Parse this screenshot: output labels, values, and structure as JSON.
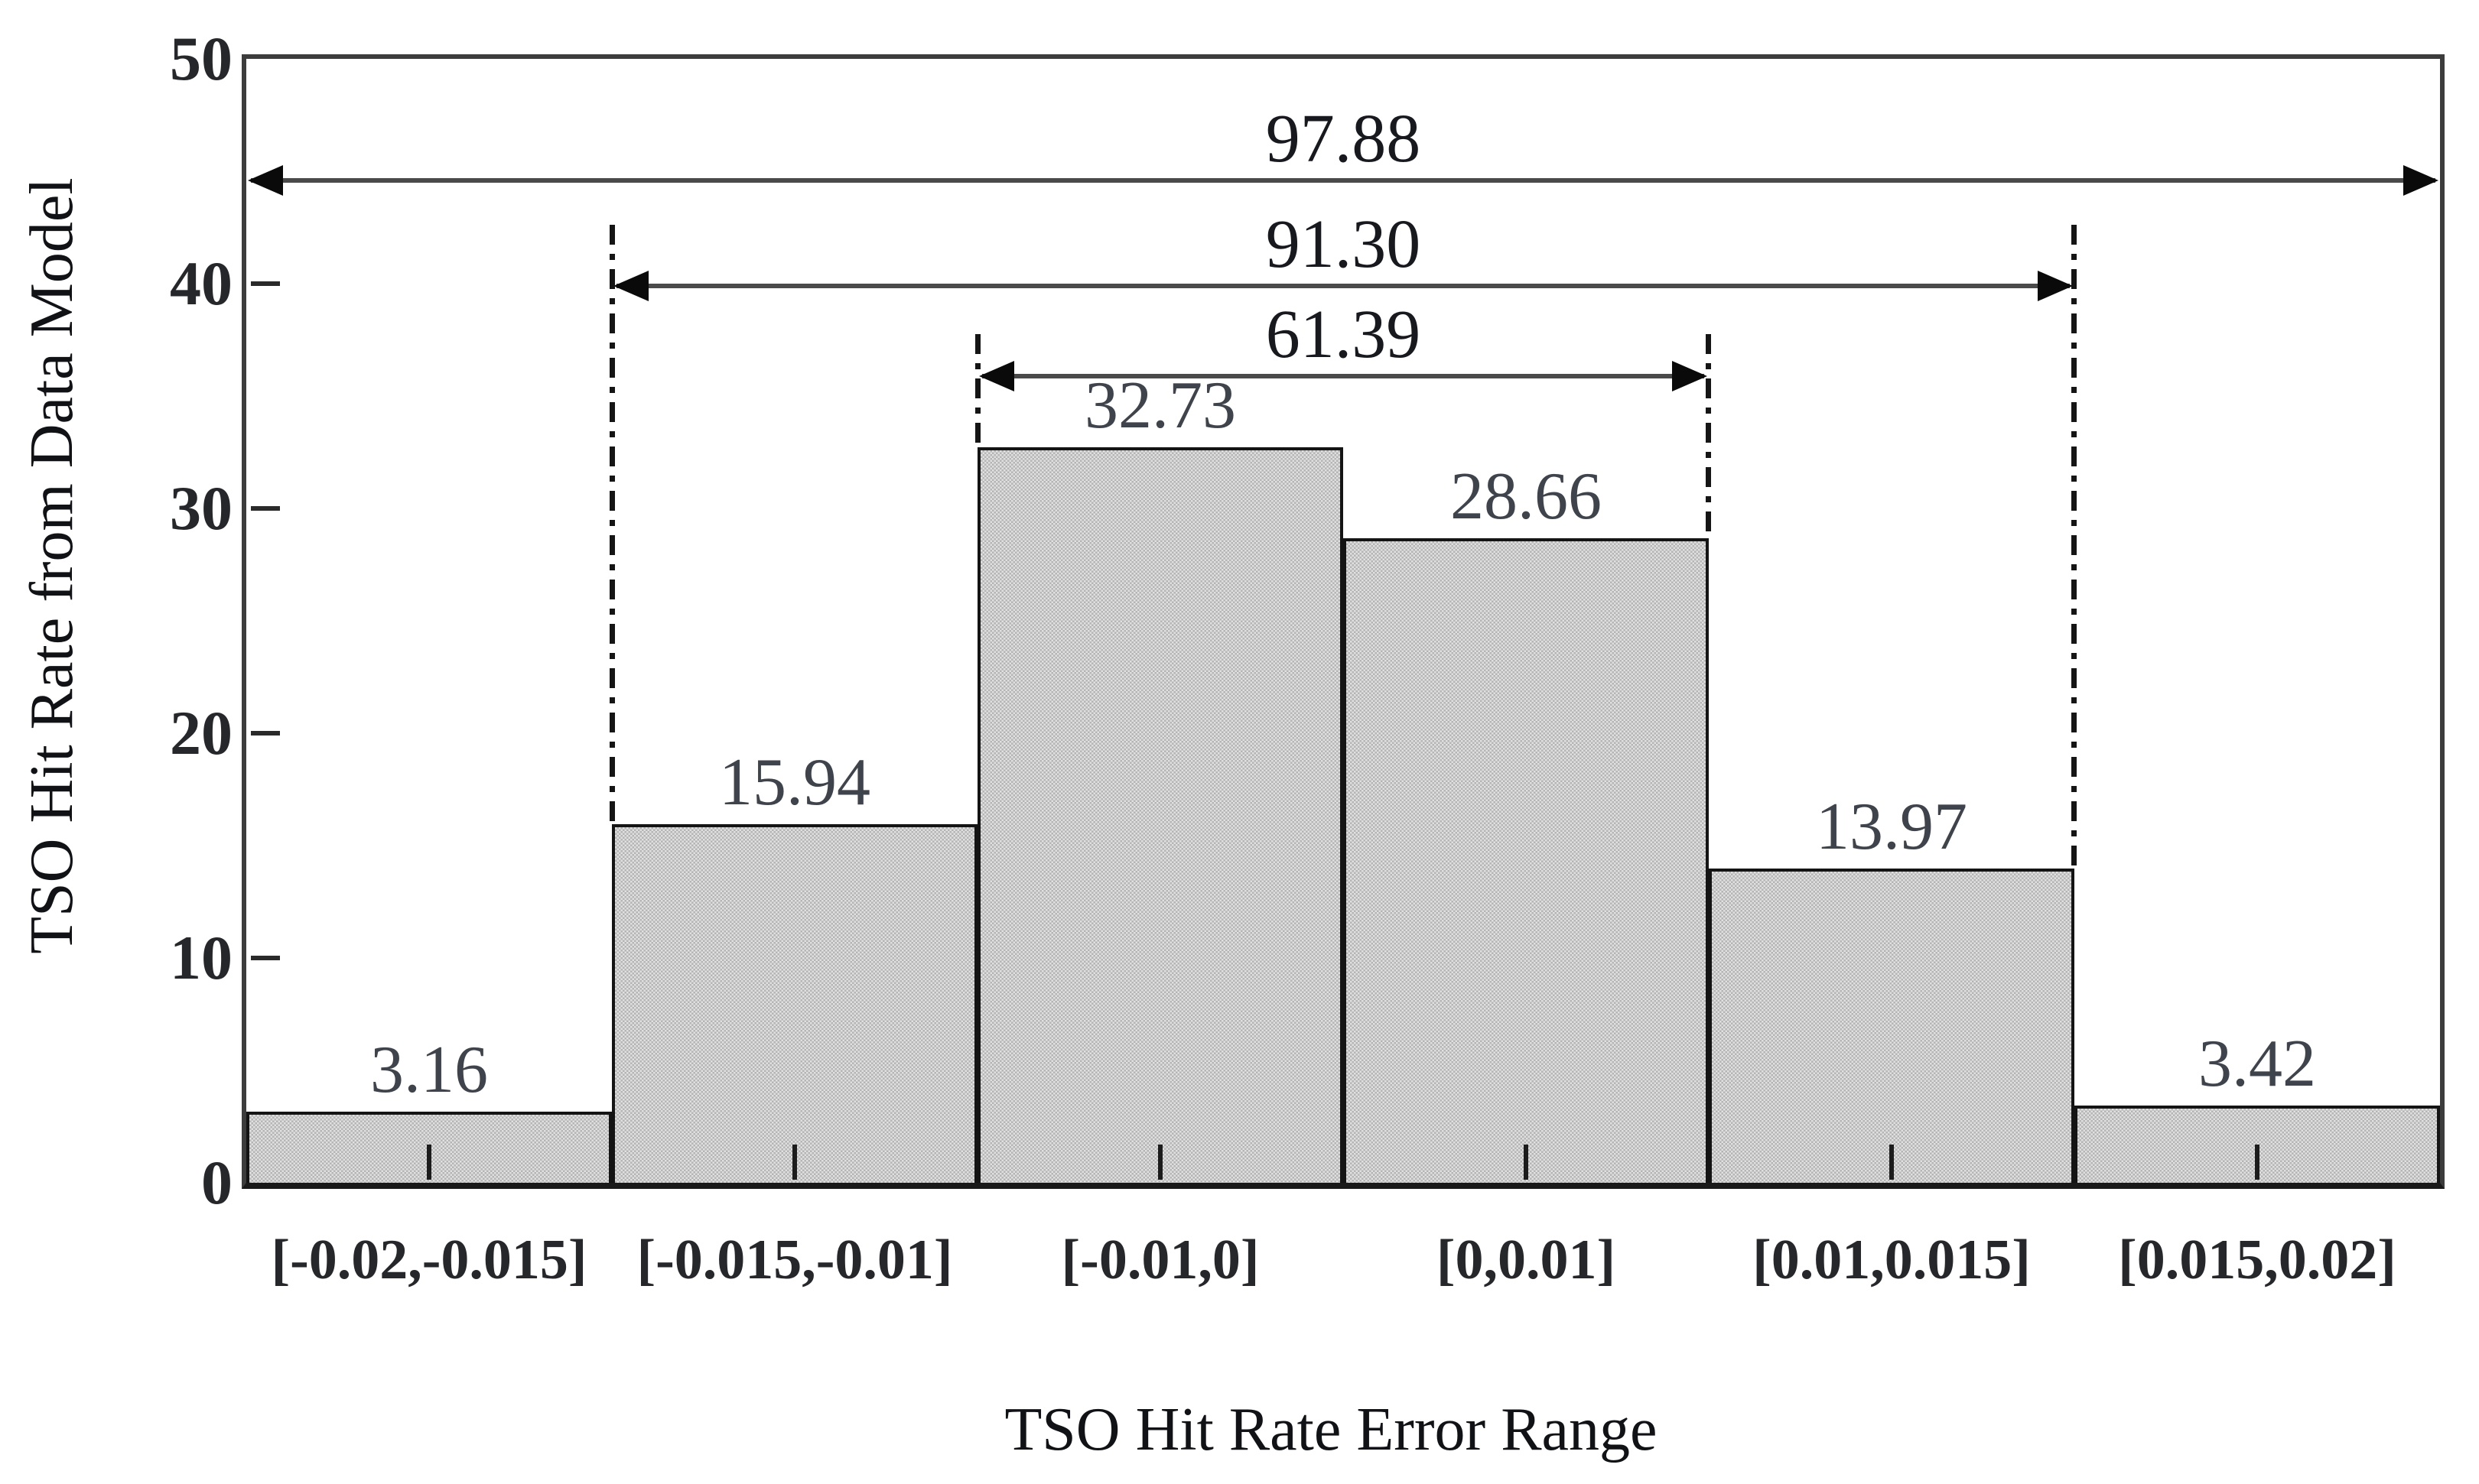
{
  "chart_data": {
    "type": "bar",
    "title": "",
    "xlabel": "TSO Hit Rate Error Range",
    "ylabel": "TSO Hit Rate from Data Model",
    "categories": [
      "[-0.02,-0.015]",
      "[-0.015,-0.01]",
      "[-0.01,0]",
      "[0,0.01]",
      "[0.01,0.015]",
      "[0.015,0.02]"
    ],
    "values": [
      3.16,
      15.94,
      32.73,
      28.66,
      13.97,
      3.42
    ],
    "bar_labels": [
      "3.16",
      "15.94",
      "32.73",
      "28.66",
      "13.97",
      "3.42"
    ],
    "ylim": [
      0,
      50
    ],
    "yticks": [
      0,
      10,
      20,
      30,
      40,
      50
    ],
    "grid": false,
    "legend": "none",
    "bar_fill": "gray checkerboard hatch",
    "annotations": [
      {
        "label": "97.88",
        "span_start_category": 0,
        "span_end_category": 5,
        "y_value": 44.6,
        "guides": false
      },
      {
        "label": "91.30",
        "span_start_category": 1,
        "span_end_category": 4,
        "y_value": 39.9,
        "guides": true
      },
      {
        "label": "61.39",
        "span_start_category": 2,
        "span_end_category": 3,
        "y_value": 35.9,
        "guides": true
      }
    ],
    "colors": {
      "bar_fill_dark": "#b5b5b5",
      "bar_fill_light": "#e0e0e0",
      "bar_border": "#141414",
      "axis_border": "#3c3c3c",
      "arrow_line": "#4a4a4a",
      "arrow_head": "#0a0a0a",
      "value_text": "#3f434c",
      "tick_text": "#26272b",
      "background": "#ffffff"
    }
  }
}
